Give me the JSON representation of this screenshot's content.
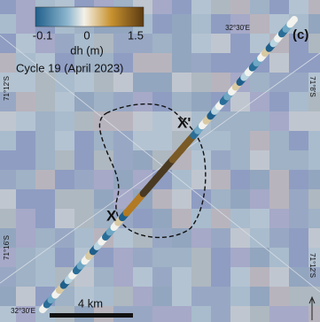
{
  "colorbar": {
    "label": "dh (m)",
    "tick_labels": [
      "-0.1",
      "0",
      "1.5"
    ]
  },
  "caption": "Cycle 19 (April 2023)",
  "panel_label": "(c)",
  "graticule": {
    "top_lon": "32°30'E",
    "bottom_lon": "32°30'E",
    "left_lat_upper": "71°12'S",
    "left_lat_lower": "71°16'S",
    "right_lat_upper": "71°8'S",
    "right_lat_lower": "71°12'S"
  },
  "markers": {
    "start": "X",
    "end": "X'"
  },
  "scale_bar": "4 km"
}
